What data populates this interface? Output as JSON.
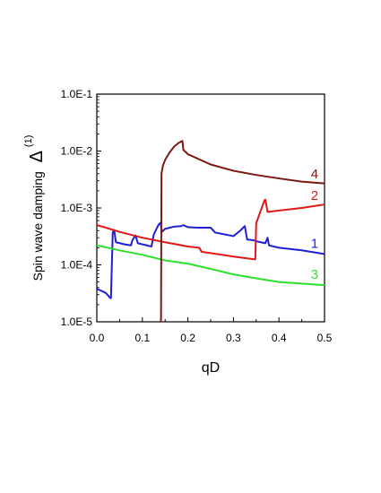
{
  "chart_data": {
    "type": "line",
    "title": "",
    "xlabel": "qD",
    "ylabel": {
      "text": "Spin wave damping",
      "symbol": "Δ",
      "superscript": "(1)"
    },
    "xscale": "linear",
    "yscale": "log",
    "xlim": [
      0.0,
      0.5
    ],
    "ylim": [
      1e-05,
      0.1
    ],
    "x_ticks": [
      "0.0",
      "0.1",
      "0.2",
      "0.3",
      "0.4",
      "0.5"
    ],
    "y_ticks": [
      "1.0E-5",
      "1.0E-4",
      "1.0E-3",
      "1.0E-2",
      "1.0E-1"
    ],
    "grid": false,
    "series": [
      {
        "name": "1",
        "color": "#1f1fd6",
        "points": [
          [
            0.0,
            3.8e-05
          ],
          [
            0.01,
            3.5e-05
          ],
          [
            0.02,
            3.2e-05
          ],
          [
            0.03,
            2.6e-05
          ],
          [
            0.031,
            2.6e-05
          ],
          [
            0.035,
            0.00037
          ],
          [
            0.038,
            0.00041
          ],
          [
            0.042,
            0.00025
          ],
          [
            0.06,
            0.00023
          ],
          [
            0.075,
            0.00022
          ],
          [
            0.078,
            0.00027
          ],
          [
            0.085,
            0.00033
          ],
          [
            0.09,
            0.00024
          ],
          [
            0.11,
            0.00022
          ],
          [
            0.12,
            0.00021
          ],
          [
            0.125,
            0.00034
          ],
          [
            0.135,
            0.0005
          ],
          [
            0.14,
            0.00055
          ],
          [
            0.143,
            0.00038
          ],
          [
            0.15,
            0.00043
          ],
          [
            0.17,
            0.00047
          ],
          [
            0.185,
            0.00048
          ],
          [
            0.19,
            0.0005
          ],
          [
            0.2,
            0.00046
          ],
          [
            0.22,
            0.00045
          ],
          [
            0.25,
            0.00045
          ],
          [
            0.26,
            0.00037
          ],
          [
            0.3,
            0.00032
          ],
          [
            0.315,
            0.0004
          ],
          [
            0.325,
            0.00048
          ],
          [
            0.33,
            0.00028
          ],
          [
            0.345,
            0.00027
          ],
          [
            0.35,
            0.00026
          ],
          [
            0.37,
            0.00024
          ],
          [
            0.375,
            0.0003
          ],
          [
            0.378,
            0.00022
          ],
          [
            0.4,
            0.0002
          ],
          [
            0.45,
            0.00018
          ],
          [
            0.5,
            0.000155
          ]
        ]
      },
      {
        "name": "2",
        "color": "#e01818",
        "points": [
          [
            0.0,
            0.0005
          ],
          [
            0.02,
            0.00045
          ],
          [
            0.05,
            0.00038
          ],
          [
            0.1,
            0.0003
          ],
          [
            0.15,
            0.00025
          ],
          [
            0.2,
            0.00021
          ],
          [
            0.225,
            0.0002
          ],
          [
            0.23,
            0.00017
          ],
          [
            0.3,
            0.00014
          ],
          [
            0.348,
            0.000125
          ],
          [
            0.35,
            0.00054
          ],
          [
            0.36,
            0.0009
          ],
          [
            0.368,
            0.00135
          ],
          [
            0.37,
            0.0014
          ],
          [
            0.375,
            0.00085
          ],
          [
            0.4,
            0.0009
          ],
          [
            0.45,
            0.001
          ],
          [
            0.5,
            0.00115
          ]
        ]
      },
      {
        "name": "3",
        "color": "#2ee02e",
        "points": [
          [
            0.0,
            0.00022
          ],
          [
            0.05,
            0.00018
          ],
          [
            0.1,
            0.00015
          ],
          [
            0.15,
            0.00012
          ],
          [
            0.2,
            0.000105
          ],
          [
            0.25,
            8.5e-05
          ],
          [
            0.3,
            6.8e-05
          ],
          [
            0.35,
            5.8e-05
          ],
          [
            0.4,
            5e-05
          ],
          [
            0.45,
            4.7e-05
          ],
          [
            0.5,
            4.4e-05
          ]
        ]
      },
      {
        "name": "4",
        "color": "#7a1a10",
        "points": [
          [
            0.14,
            8e-06
          ],
          [
            0.141,
            1.2e-05
          ],
          [
            0.142,
            0.004
          ],
          [
            0.145,
            0.0055
          ],
          [
            0.15,
            0.007
          ],
          [
            0.16,
            0.0095
          ],
          [
            0.17,
            0.012
          ],
          [
            0.18,
            0.014
          ],
          [
            0.188,
            0.015
          ],
          [
            0.19,
            0.0105
          ],
          [
            0.2,
            0.0088
          ],
          [
            0.25,
            0.0058
          ],
          [
            0.3,
            0.0045
          ],
          [
            0.35,
            0.0038
          ],
          [
            0.4,
            0.0033
          ],
          [
            0.45,
            0.0029
          ],
          [
            0.5,
            0.0027
          ]
        ]
      }
    ]
  }
}
